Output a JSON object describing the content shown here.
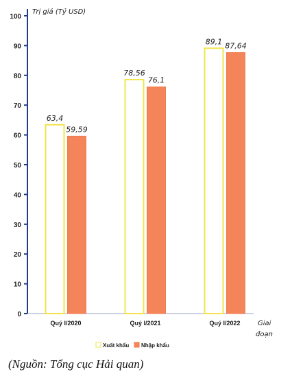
{
  "chart_data": {
    "type": "bar",
    "categories": [
      "Quý I/2020",
      "Quý I/2021",
      "Quý I/2022"
    ],
    "series": [
      {
        "name": "Xuất khẩu",
        "values": [
          63.4,
          78.56,
          89.1
        ],
        "labels": [
          "63,4",
          "78,56",
          "89,1"
        ],
        "fill": "#ffffff",
        "stroke": "#f2e44a"
      },
      {
        "name": "Nhập khẩu",
        "values": [
          59.59,
          76.1,
          87.64
        ],
        "labels": [
          "59,59",
          "76,1",
          "87,64"
        ],
        "fill": "#f4845a",
        "stroke": "#f07a4c"
      }
    ],
    "ylabel": "Trị giá (Tỷ USD)",
    "xlabel_line1": "Giai",
    "xlabel_line2": "đoạn",
    "ylim": [
      0,
      100
    ],
    "yticks": [
      0,
      10,
      20,
      30,
      40,
      50,
      60,
      70,
      80,
      90,
      100
    ],
    "legend_position": "bottom",
    "grid": false,
    "axis_color": "#1f3b8a"
  },
  "source_note": "(Nguồn: Tổng cục Hải quan)"
}
